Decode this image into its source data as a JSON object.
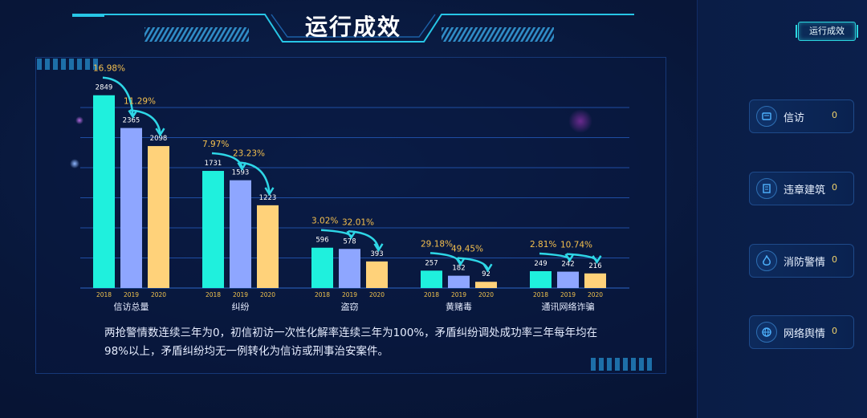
{
  "header": {
    "title": "运行成效"
  },
  "top_right_button": {
    "label": "运行成效"
  },
  "side_cards": [
    {
      "label": "信访",
      "count": "0",
      "icon": "petition-icon"
    },
    {
      "label": "违章建筑",
      "count": "0",
      "icon": "building-icon"
    },
    {
      "label": "消防警情",
      "count": "0",
      "icon": "fire-icon"
    },
    {
      "label": "网络舆情",
      "count": "0",
      "icon": "network-icon"
    }
  ],
  "summary": "两抢警情数连续三年为0，初信初访一次性化解率连续三年为100%，矛盾纠纷调处成功率三年每年均在98%以上，矛盾纠纷均无一例转化为信访或刑事治安案件。",
  "colors": {
    "y2018": "#1ff0dd",
    "y2019": "#8ea6ff",
    "y2020": "#ffd27a",
    "pct": "#f5c04e",
    "arrow": "#2ed6e6"
  },
  "chart_data": {
    "type": "bar",
    "categories": [
      "信访总量",
      "纠纷",
      "盗窃",
      "黄赌毒",
      "通讯网络诈骗"
    ],
    "series": [
      {
        "name": "2018",
        "values": [
          2849,
          1731,
          596,
          257,
          249
        ]
      },
      {
        "name": "2019",
        "values": [
          2365,
          1593,
          578,
          182,
          242
        ]
      },
      {
        "name": "2020",
        "values": [
          2098,
          1223,
          393,
          92,
          216
        ]
      }
    ],
    "changes": [
      [
        "16.98%",
        "11.29%"
      ],
      [
        "7.97%",
        "23.23%"
      ],
      [
        "3.02%",
        "32.01%"
      ],
      [
        "29.18%",
        "49.45%"
      ],
      [
        "2.81%",
        "10.74%"
      ]
    ],
    "ylim": [
      0,
      3000
    ],
    "grid": true
  }
}
